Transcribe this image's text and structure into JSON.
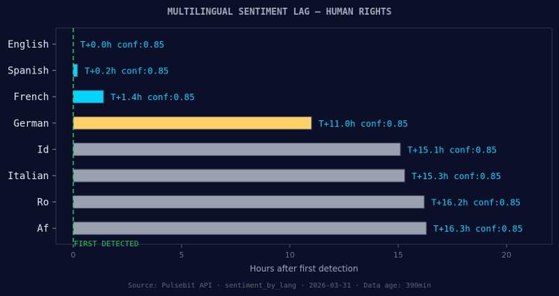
{
  "chart_data": {
    "type": "bar",
    "orientation": "horizontal",
    "title": "MULTILINGUAL SENTIMENT LAG — HUMAN RIGHTS",
    "xlabel": "Hours after first detection",
    "ylabel": "",
    "xlim": [
      -0.8,
      22.1
    ],
    "xticks": [
      0,
      5,
      10,
      15,
      20
    ],
    "grid": false,
    "categories": [
      "English",
      "Spanish",
      "French",
      "German",
      "Id",
      "Italian",
      "Ro",
      "Af"
    ],
    "values": [
      0.0,
      0.2,
      1.4,
      11.0,
      15.1,
      15.3,
      16.2,
      16.3
    ],
    "data_labels": [
      "T+0.0h  conf:0.85",
      "T+0.2h  conf:0.85",
      "T+1.4h  conf:0.85",
      "T+11.0h  conf:0.85",
      "T+15.1h  conf:0.85",
      "T+15.3h  conf:0.85",
      "T+16.2h  conf:0.85",
      "T+16.3h  conf:0.85"
    ],
    "bar_colors": [
      "#00d4ff",
      "#00d4ff",
      "#00d4ff",
      "#ffd166",
      "#9aa1ae",
      "#9aa1ae",
      "#9aa1ae",
      "#9aa1ae"
    ],
    "reference_line": {
      "x": 0,
      "label": "FIRST DETECTED",
      "color": "#22c55e"
    },
    "footer": "Source: Pulsebit API · sentiment_by_lang · 2026-03-31 · Data age: 390min"
  },
  "colors": {
    "background": "#0b0f27",
    "label": "#00d4ff",
    "text": "#9aa1ae"
  }
}
